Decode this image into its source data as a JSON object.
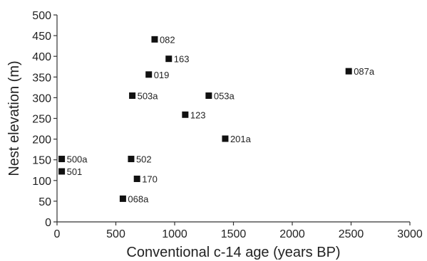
{
  "chart_data": {
    "type": "scatter",
    "title": "",
    "xlabel": "Conventional c-14 age (years BP)",
    "ylabel": "Nest elevation (m)",
    "xlim": [
      0,
      3000
    ],
    "ylim": [
      0,
      500
    ],
    "xticks": [
      0,
      500,
      1000,
      1500,
      2000,
      2500,
      3000
    ],
    "yticks": [
      0,
      50,
      100,
      150,
      200,
      250,
      300,
      350,
      400,
      450,
      500
    ],
    "grid": false,
    "marker": "square",
    "marker_color": "#111111",
    "points": [
      {
        "label": "082",
        "x": 830,
        "y": 441
      },
      {
        "label": "163",
        "x": 950,
        "y": 394
      },
      {
        "label": "019",
        "x": 780,
        "y": 356
      },
      {
        "label": "087a",
        "x": 2480,
        "y": 364
      },
      {
        "label": "503a",
        "x": 640,
        "y": 305
      },
      {
        "label": "053a",
        "x": 1290,
        "y": 305
      },
      {
        "label": "123",
        "x": 1090,
        "y": 259
      },
      {
        "label": "201a",
        "x": 1430,
        "y": 201
      },
      {
        "label": "500a",
        "x": 40,
        "y": 152
      },
      {
        "label": "502",
        "x": 630,
        "y": 152
      },
      {
        "label": "501",
        "x": 40,
        "y": 122
      },
      {
        "label": "170",
        "x": 680,
        "y": 104
      },
      {
        "label": "068a",
        "x": 560,
        "y": 56
      }
    ]
  }
}
